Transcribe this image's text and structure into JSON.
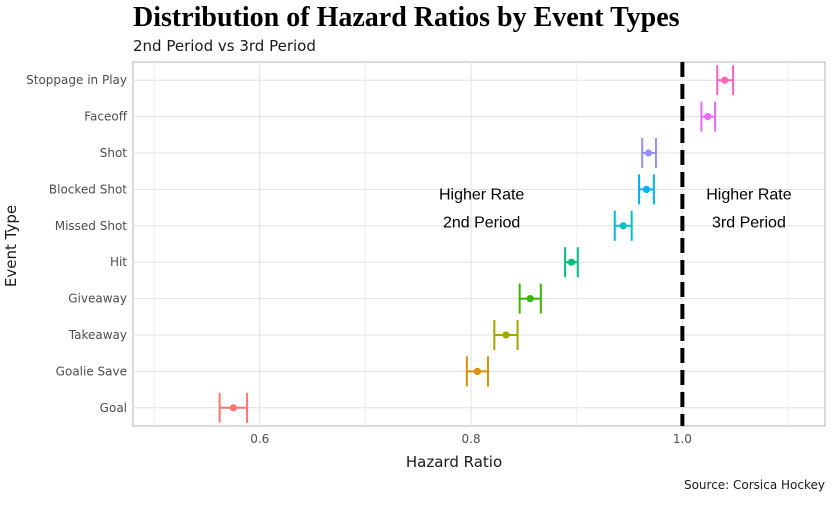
{
  "chart_data": {
    "type": "scatter",
    "title": "Distribution of Hazard Ratios by Event Types",
    "subtitle": "2nd Period vs 3rd Period",
    "caption": "Source: Corsica Hockey",
    "xlabel": "Hazard Ratio",
    "ylabel": "Event Type",
    "xlim": [
      0.48,
      1.135
    ],
    "xticks": [
      0.6,
      0.8,
      1.0
    ],
    "xtick_labels": [
      "0.6",
      "0.8",
      "1.0"
    ],
    "reference_line": 1.0,
    "grid": true,
    "categories": [
      "Goal",
      "Goalie Save",
      "Takeaway",
      "Giveaway",
      "Hit",
      "Missed Shot",
      "Blocked Shot",
      "Shot",
      "Faceoff",
      "Stoppage in Play"
    ],
    "points": [
      {
        "category": "Goal",
        "value": 0.575,
        "low": 0.562,
        "high": 0.588,
        "color": "#F8766D"
      },
      {
        "category": "Goalie Save",
        "value": 0.806,
        "low": 0.796,
        "high": 0.816,
        "color": "#D89000"
      },
      {
        "category": "Takeaway",
        "value": 0.833,
        "low": 0.822,
        "high": 0.844,
        "color": "#A3A500"
      },
      {
        "category": "Giveaway",
        "value": 0.856,
        "low": 0.846,
        "high": 0.866,
        "color": "#39B600"
      },
      {
        "category": "Hit",
        "value": 0.895,
        "low": 0.889,
        "high": 0.901,
        "color": "#00BF7D"
      },
      {
        "category": "Missed Shot",
        "value": 0.944,
        "low": 0.936,
        "high": 0.952,
        "color": "#00BFC4"
      },
      {
        "category": "Blocked Shot",
        "value": 0.966,
        "low": 0.959,
        "high": 0.973,
        "color": "#00B0F6"
      },
      {
        "category": "Shot",
        "value": 0.968,
        "low": 0.962,
        "high": 0.975,
        "color": "#9590FF"
      },
      {
        "category": "Faceoff",
        "value": 1.024,
        "low": 1.018,
        "high": 1.031,
        "color": "#E76BF3"
      },
      {
        "category": "Stoppage in Play",
        "value": 1.04,
        "low": 1.033,
        "high": 1.048,
        "color": "#FF62BC"
      }
    ],
    "annotations": [
      {
        "lines": [
          "Higher Rate",
          "2nd Period"
        ],
        "x": 0.81,
        "y": 5.5
      },
      {
        "lines": [
          "Higher Rate",
          "3rd Period"
        ],
        "x": 1.063,
        "y": 5.5
      }
    ]
  }
}
